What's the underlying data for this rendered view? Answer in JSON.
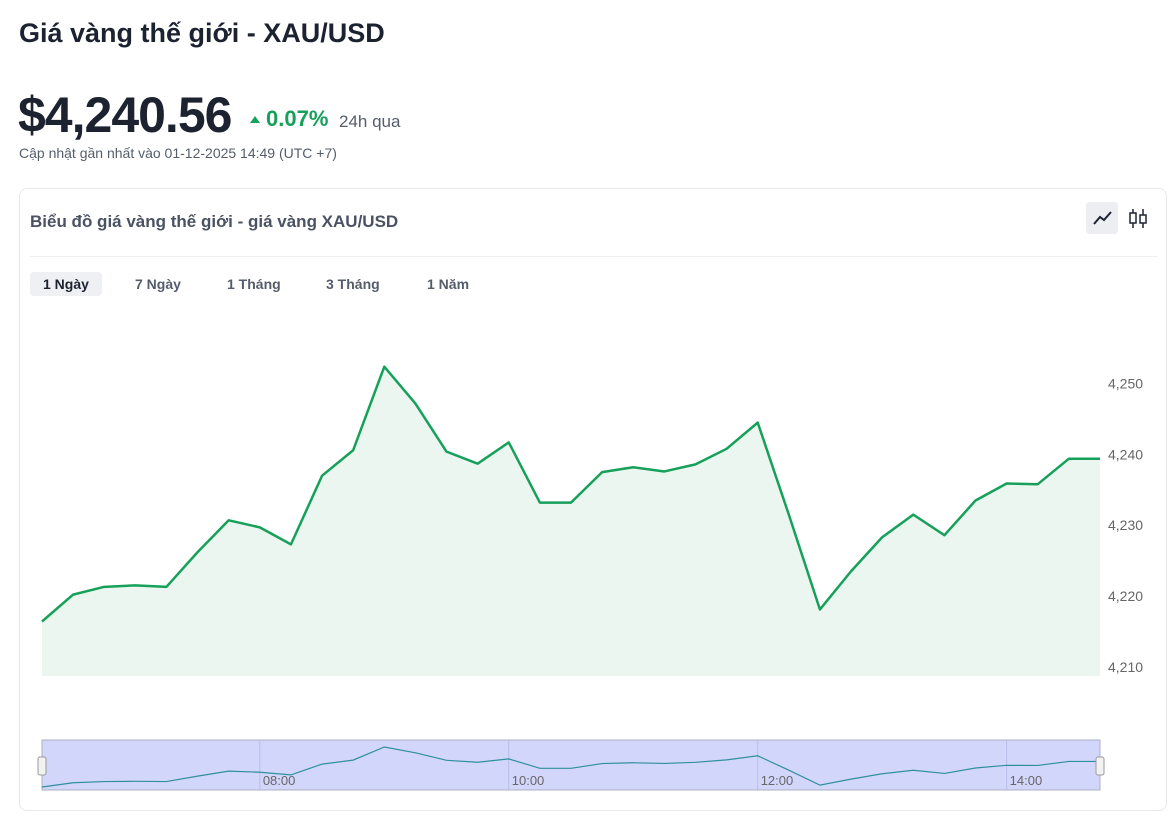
{
  "header": {
    "title": "Giá vàng thế giới - XAU/USD",
    "price": "$4,240.56",
    "change": "0.07%",
    "period": "24h qua",
    "updated": "Cập nhật gần nhất vào 01-12-2025 14:49 (UTC +7)"
  },
  "card": {
    "title": "Biểu đồ giá vàng thế giới - giá vàng XAU/USD",
    "tabs": [
      "1 Ngày",
      "7 Ngày",
      "1 Tháng",
      "3 Tháng",
      "1 Năm"
    ],
    "active_tab": 0
  },
  "chart_data": {
    "type": "area",
    "x": [
      375,
      390,
      405,
      420,
      435,
      450,
      465,
      480,
      495,
      510,
      525,
      540,
      555,
      570,
      585,
      600,
      615,
      630,
      645,
      660,
      675,
      690,
      705,
      720,
      735,
      750,
      765,
      780,
      795,
      810,
      825,
      840,
      855,
      870,
      885
    ],
    "xlim": [
      375,
      885
    ],
    "xticks": [
      {
        "value": 480,
        "label": "08:00"
      },
      {
        "value": 600,
        "label": "10:00"
      },
      {
        "value": 720,
        "label": "12:00"
      },
      {
        "value": 840,
        "label": "14:00"
      }
    ],
    "series": [
      {
        "color": "#16a05a",
        "area_color": "#ecf6f0",
        "values": [
          4216.4,
          4220.2,
          4221.3,
          4221.5,
          4221.3,
          4226.2,
          4230.7,
          4229.7,
          4227.3,
          4237.0,
          4240.6,
          4252.4,
          4247.2,
          4240.4,
          4238.7,
          4241.7,
          4233.2,
          4233.2,
          4237.5,
          4238.2,
          4237.6,
          4238.6,
          4240.8,
          4244.5,
          4231.5,
          4218.1,
          4223.5,
          4228.3,
          4231.5,
          4228.6,
          4233.5,
          4235.9,
          4235.8,
          4239.4,
          4239.4
        ]
      }
    ],
    "ylim": [
      4208.7,
      4259
    ],
    "yticks": [
      {
        "value": 4210,
        "label": "4,210"
      },
      {
        "value": 4220,
        "label": "4,220"
      },
      {
        "value": 4230,
        "label": "4,230"
      },
      {
        "value": 4240,
        "label": "4,240"
      },
      {
        "value": 4250,
        "label": "4,250"
      }
    ],
    "navigator_color": "#d3d6fb"
  }
}
